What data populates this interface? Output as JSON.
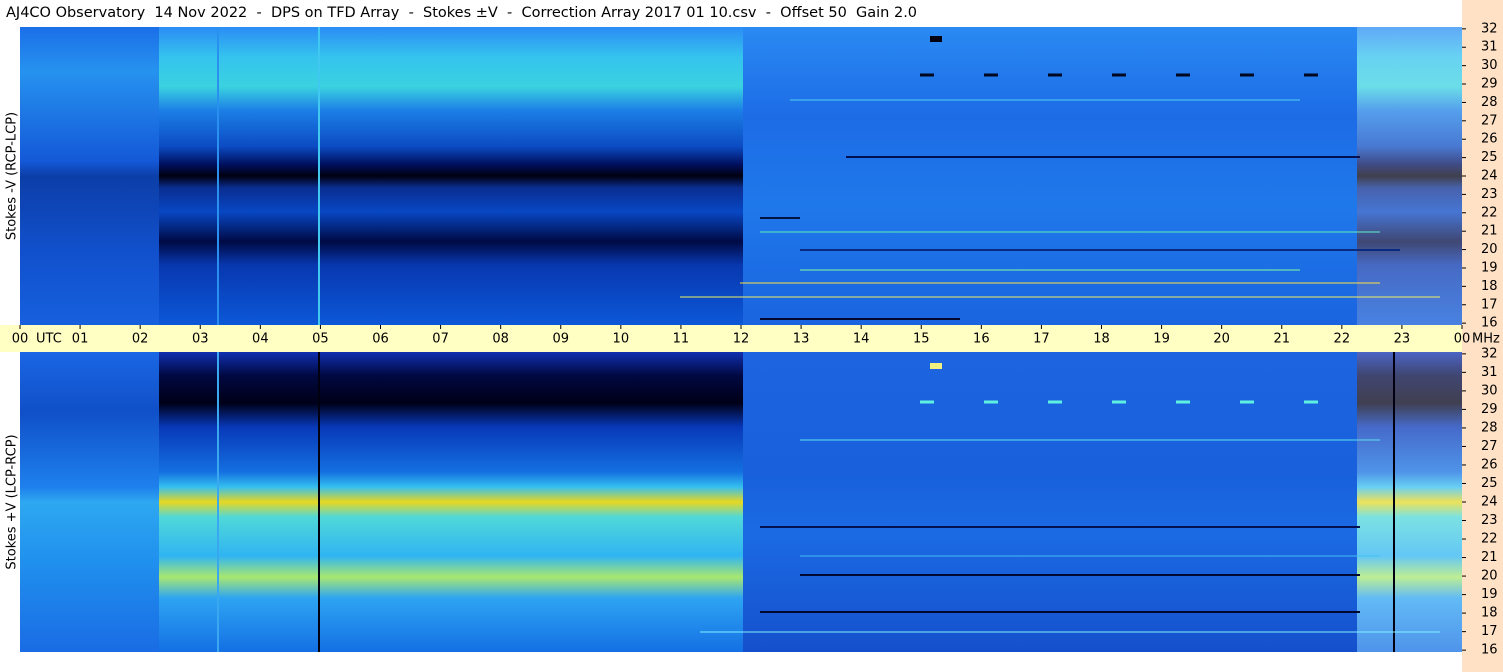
{
  "title": "AJ4CO Observatory  14 Nov 2022  -  DPS on TFD Array  -  Stokes ±V  -  Correction Array 2017 01 10.csv  -  Offset 50  Gain 2.0",
  "chart_data": [
    {
      "type": "spectrogram",
      "ylabel": "Stokes -V (RCP-LCP)",
      "xlabel": "UTC",
      "xlim": [
        0,
        24
      ],
      "xticks": [
        {
          "value": 0,
          "label": "00"
        },
        {
          "value": 1,
          "label": "01"
        },
        {
          "value": 2,
          "label": "02"
        },
        {
          "value": 3,
          "label": "03"
        },
        {
          "value": 4,
          "label": "04"
        },
        {
          "value": 5,
          "label": "05"
        },
        {
          "value": 6,
          "label": "06"
        },
        {
          "value": 7,
          "label": "07"
        },
        {
          "value": 8,
          "label": "08"
        },
        {
          "value": 9,
          "label": "09"
        },
        10,
        11,
        12,
        13,
        14,
        15,
        16,
        17,
        18,
        19,
        20,
        21,
        22,
        23,
        {
          "value": 24,
          "label": "00"
        }
      ],
      "yunit": "MHz",
      "ylim": [
        15.9,
        32.1
      ],
      "yticks": [
        16,
        17,
        18,
        19,
        20,
        21,
        22,
        23,
        24,
        25,
        26,
        27,
        28,
        29,
        30,
        31,
        32
      ]
    },
    {
      "type": "spectrogram",
      "ylabel": "Stokes +V (LCP-RCP)",
      "ylim": [
        15.9,
        32.1
      ],
      "yticks": [
        16,
        17,
        18,
        19,
        20,
        21,
        22,
        23,
        24,
        25,
        26,
        27,
        28,
        29,
        30,
        31,
        32
      ]
    }
  ]
}
